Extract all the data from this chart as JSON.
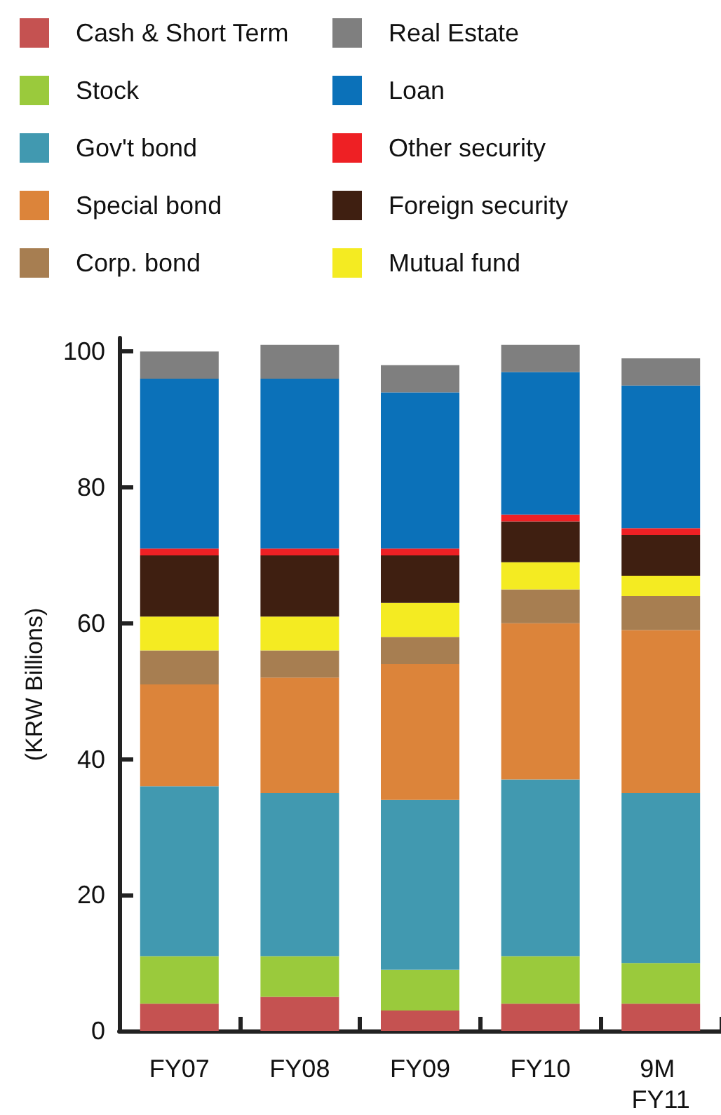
{
  "chart_data": {
    "type": "bar",
    "stacked": true,
    "ylabel": "(KRW Billions)",
    "categories": [
      "FY07",
      "FY08",
      "FY09",
      "FY10",
      "9M FY11"
    ],
    "ylim": [
      0,
      102
    ],
    "yticks": [
      0,
      20,
      40,
      60,
      80,
      100
    ],
    "grid": false,
    "legend": "top",
    "series": [
      {
        "name": "Cash & Short Term",
        "color": "#c55251",
        "values": [
          4,
          5,
          3,
          4,
          4
        ]
      },
      {
        "name": "Stock",
        "color": "#9aca3c",
        "values": [
          7,
          6,
          6,
          7,
          6
        ]
      },
      {
        "name": "Gov't bond",
        "color": "#4199b0",
        "values": [
          25,
          24,
          25,
          26,
          25
        ]
      },
      {
        "name": "Special bond",
        "color": "#dc843a",
        "values": [
          15,
          17,
          20,
          23,
          24
        ]
      },
      {
        "name": "Corp. bond",
        "color": "#a77e51",
        "values": [
          5,
          4,
          4,
          5,
          5
        ]
      },
      {
        "name": "Mutual fund",
        "color": "#f4eb22",
        "values": [
          5,
          5,
          5,
          4,
          3
        ]
      },
      {
        "name": "Foreign security",
        "color": "#3f1f11",
        "values": [
          9,
          9,
          7,
          6,
          6
        ]
      },
      {
        "name": "Other security",
        "color": "#ee2024",
        "values": [
          1,
          1,
          1,
          1,
          1
        ]
      },
      {
        "name": "Loan",
        "color": "#0b71b9",
        "values": [
          25,
          25,
          23,
          21,
          21
        ]
      },
      {
        "name": "Real Estate",
        "color": "#7f7f7f",
        "values": [
          4,
          5,
          4,
          4,
          4
        ]
      }
    ]
  }
}
